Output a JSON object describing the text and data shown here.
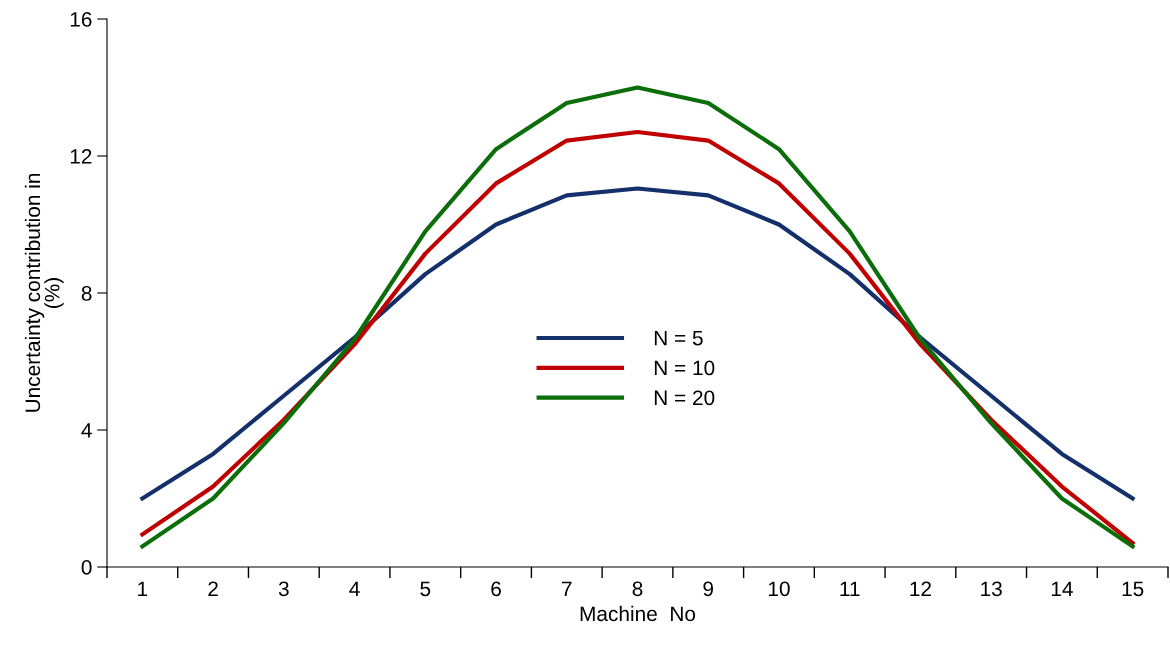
{
  "chart_data": {
    "type": "line",
    "xlabel": "Machine  No",
    "ylabel": "Uncertainty contribution in\n(%)",
    "categories": [
      "1",
      "2",
      "3",
      "4",
      "5",
      "6",
      "7",
      "8",
      "9",
      "10",
      "11",
      "12",
      "13",
      "14",
      "15"
    ],
    "series": [
      {
        "name": "N = 5",
        "color": "#13306b",
        "values": [
          2.0,
          3.3,
          5.0,
          6.7,
          8.55,
          10.0,
          10.85,
          11.05,
          10.85,
          10.0,
          8.55,
          6.7,
          5.0,
          3.3,
          2.0
        ]
      },
      {
        "name": "N = 10",
        "color": "#c00000",
        "values": [
          0.95,
          2.35,
          4.3,
          6.5,
          9.15,
          11.2,
          12.45,
          12.7,
          12.45,
          11.2,
          9.15,
          6.5,
          4.3,
          2.35,
          0.7
        ]
      },
      {
        "name": "N = 20",
        "color": "#0b6e0b",
        "values": [
          0.6,
          2.0,
          4.2,
          6.65,
          9.8,
          12.2,
          13.55,
          14.0,
          13.55,
          12.2,
          9.8,
          6.65,
          4.2,
          2.0,
          0.6
        ]
      }
    ],
    "ylim": [
      0,
      16
    ],
    "yticks": [
      0,
      4,
      8,
      12,
      16
    ],
    "grid": false,
    "legend": "center",
    "marker": "none",
    "line_style": "solid"
  }
}
